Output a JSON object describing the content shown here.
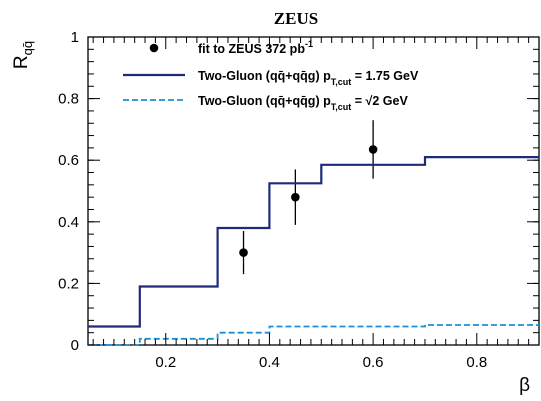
{
  "chart_data": {
    "type": "line",
    "title": "ZEUS",
    "xlabel": "β",
    "ylabel": "R",
    "ylabel_sub": "qq̄",
    "xlim": [
      0.05,
      0.92
    ],
    "ylim": [
      0,
      1
    ],
    "x_ticks": [
      0.2,
      0.4,
      0.6,
      0.8
    ],
    "x_tick_labels": [
      "0.2",
      "0.4",
      "0.6",
      "0.8"
    ],
    "y_ticks": [
      0,
      0.2,
      0.4,
      0.6,
      0.8,
      1
    ],
    "y_tick_labels": [
      "0",
      "0.2",
      "0.4",
      "0.6",
      "0.8",
      "1"
    ],
    "legend_position": "top-left",
    "grid": false,
    "series": [
      {
        "name": "fit to ZEUS 372 pb-1",
        "kind": "points",
        "color": "#000000",
        "x": [
          0.35,
          0.45,
          0.6
        ],
        "y": [
          0.3,
          0.48,
          0.635
        ],
        "err": [
          0.07,
          0.09,
          0.095
        ]
      },
      {
        "name": "Two-Gluon (qq̄+qq̄g) pT,cut = 1.75 GeV",
        "kind": "step",
        "color": "#1f2a7a",
        "dash": "solid",
        "edges": [
          0.05,
          0.15,
          0.3,
          0.4,
          0.5,
          0.7,
          0.92
        ],
        "values": [
          0.06,
          0.19,
          0.38,
          0.525,
          0.585,
          0.61
        ]
      },
      {
        "name": "Two-Gluon (qq̄+qq̄g) pT,cut = √2 GeV",
        "kind": "step",
        "color": "#1e8fd6",
        "dash": "dashed",
        "edges": [
          0.05,
          0.15,
          0.3,
          0.4,
          0.5,
          0.7,
          0.92
        ],
        "values": [
          0.0,
          0.02,
          0.04,
          0.06,
          0.06,
          0.065
        ]
      }
    ],
    "legend": {
      "entries": [
        {
          "label": "fit to ZEUS 372 pb",
          "sup": "-1",
          "tail": ""
        },
        {
          "label": "Two-Gluon (qq̄+qq̄g) p",
          "sub": "T,cut",
          "tail": " = 1.75 GeV"
        },
        {
          "label": "Two-Gluon (qq̄+qq̄g) p",
          "sub": "T,cut",
          "tail": " = √2 GeV"
        }
      ]
    }
  }
}
